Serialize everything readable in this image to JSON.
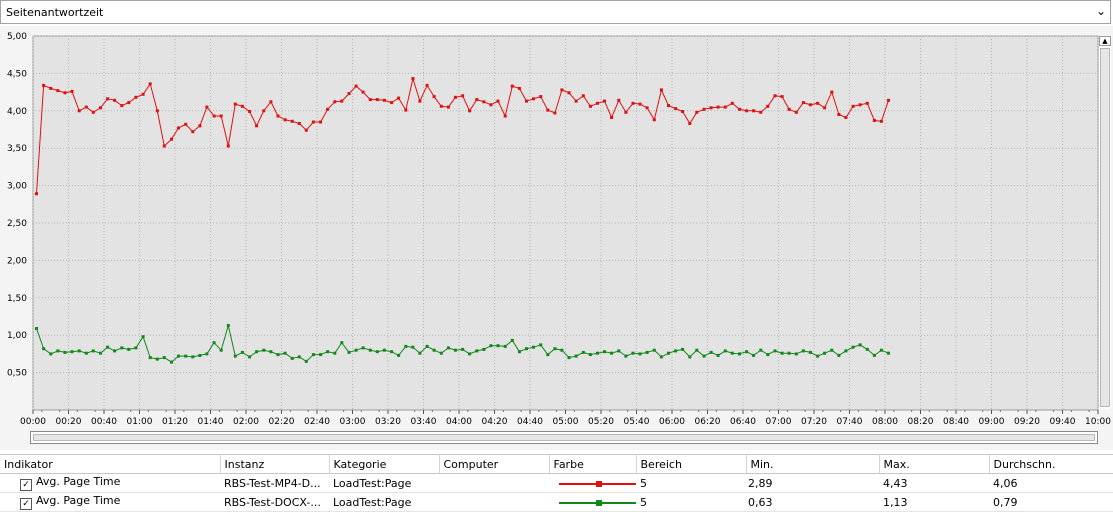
{
  "header": {
    "title": "Seitenantwortzeit",
    "dropdown_icon": "chevron-down-icon"
  },
  "chart_data": {
    "type": "line",
    "title": "Seitenantwortzeit",
    "ylim": [
      0,
      5
    ],
    "yticks": [
      "5,00",
      "4,50",
      "4,00",
      "3,50",
      "3,00",
      "2,50",
      "2,00",
      "1,50",
      "1,00",
      "0,50"
    ],
    "xlim": [
      0,
      600
    ],
    "xticks": [
      "00:00",
      "00:20",
      "00:40",
      "01:00",
      "01:20",
      "01:40",
      "02:00",
      "02:20",
      "02:40",
      "03:00",
      "03:20",
      "03:40",
      "04:00",
      "04:20",
      "04:40",
      "05:00",
      "05:20",
      "05:40",
      "06:00",
      "06:20",
      "06:40",
      "07:00",
      "07:20",
      "07:40",
      "08:00",
      "08:20",
      "08:40",
      "09:00",
      "09:20",
      "09:40",
      "10:00"
    ],
    "grid": true,
    "series": [
      {
        "name": "Avg. Page Time",
        "color": "#e01010",
        "interval_s": 4,
        "values": [
          2.89,
          4.34,
          4.3,
          4.27,
          4.24,
          4.26,
          4.0,
          4.05,
          3.98,
          4.04,
          4.16,
          4.14,
          4.07,
          4.11,
          4.18,
          4.22,
          4.36,
          4.0,
          3.53,
          3.62,
          3.77,
          3.82,
          3.72,
          3.8,
          4.05,
          3.93,
          3.93,
          3.53,
          4.09,
          4.06,
          3.99,
          3.8,
          4.0,
          4.12,
          3.93,
          3.88,
          3.86,
          3.83,
          3.74,
          3.85,
          3.85,
          4.02,
          4.12,
          4.13,
          4.23,
          4.33,
          4.25,
          4.15,
          4.15,
          4.14,
          4.11,
          4.17,
          4.01,
          4.43,
          4.13,
          4.34,
          4.19,
          4.06,
          4.05,
          4.18,
          4.2,
          4.0,
          4.15,
          4.12,
          4.08,
          4.13,
          3.93,
          4.33,
          4.3,
          4.13,
          4.16,
          4.19,
          4.01,
          3.97,
          4.28,
          4.24,
          4.13,
          4.2,
          4.06,
          4.1,
          4.13,
          3.91,
          4.14,
          3.98,
          4.1,
          4.09,
          4.04,
          3.88,
          4.28,
          4.07,
          4.03,
          3.99,
          3.83,
          3.98,
          4.02,
          4.04,
          4.05,
          4.05,
          4.1,
          4.02,
          4.0,
          4.0,
          3.98,
          4.06,
          4.2,
          4.19,
          4.02,
          3.98,
          4.11,
          4.08,
          4.1,
          4.04,
          4.25,
          3.95,
          3.91,
          4.06,
          4.08,
          4.1,
          3.87,
          3.86,
          4.14
        ]
      },
      {
        "name": "Avg. Page Time",
        "color": "#11881a",
        "interval_s": 4,
        "values": [
          1.09,
          0.82,
          0.75,
          0.79,
          0.77,
          0.78,
          0.79,
          0.76,
          0.79,
          0.76,
          0.84,
          0.79,
          0.83,
          0.81,
          0.83,
          0.98,
          0.7,
          0.68,
          0.7,
          0.64,
          0.72,
          0.72,
          0.71,
          0.73,
          0.75,
          0.9,
          0.8,
          1.13,
          0.72,
          0.77,
          0.71,
          0.78,
          0.8,
          0.78,
          0.74,
          0.76,
          0.69,
          0.71,
          0.65,
          0.74,
          0.74,
          0.78,
          0.76,
          0.9,
          0.77,
          0.8,
          0.83,
          0.8,
          0.78,
          0.8,
          0.78,
          0.73,
          0.85,
          0.84,
          0.76,
          0.85,
          0.8,
          0.76,
          0.83,
          0.8,
          0.81,
          0.75,
          0.79,
          0.81,
          0.86,
          0.86,
          0.85,
          0.93,
          0.78,
          0.82,
          0.84,
          0.87,
          0.74,
          0.82,
          0.8,
          0.7,
          0.72,
          0.77,
          0.74,
          0.76,
          0.78,
          0.76,
          0.79,
          0.72,
          0.76,
          0.75,
          0.77,
          0.8,
          0.71,
          0.76,
          0.79,
          0.81,
          0.71,
          0.8,
          0.72,
          0.77,
          0.73,
          0.79,
          0.76,
          0.75,
          0.78,
          0.73,
          0.8,
          0.74,
          0.79,
          0.76,
          0.76,
          0.75,
          0.79,
          0.77,
          0.72,
          0.76,
          0.8,
          0.73,
          0.79,
          0.84,
          0.87,
          0.81,
          0.73,
          0.8,
          0.76
        ]
      }
    ]
  },
  "legend_table": {
    "columns": [
      "Indikator",
      "Instanz",
      "Kategorie",
      "Computer",
      "Farbe",
      "Bereich",
      "Min.",
      "Max.",
      "Durchschn."
    ],
    "rows": [
      {
        "indikator": "Avg. Page Time",
        "instanz": "RBS-Test-MP4-D...",
        "kategorie": "LoadTest:Page",
        "computer": "",
        "color": "#e01010",
        "bereich": "5",
        "min": "2,89",
        "max": "4,43",
        "avg": "4,06",
        "checked": true
      },
      {
        "indikator": "Avg. Page Time",
        "instanz": "RBS-Test-DOCX-...",
        "kategorie": "LoadTest:Page",
        "computer": "",
        "color": "#11881a",
        "bereich": "5",
        "min": "0,63",
        "max": "1,13",
        "avg": "0,79",
        "checked": true
      }
    ]
  }
}
